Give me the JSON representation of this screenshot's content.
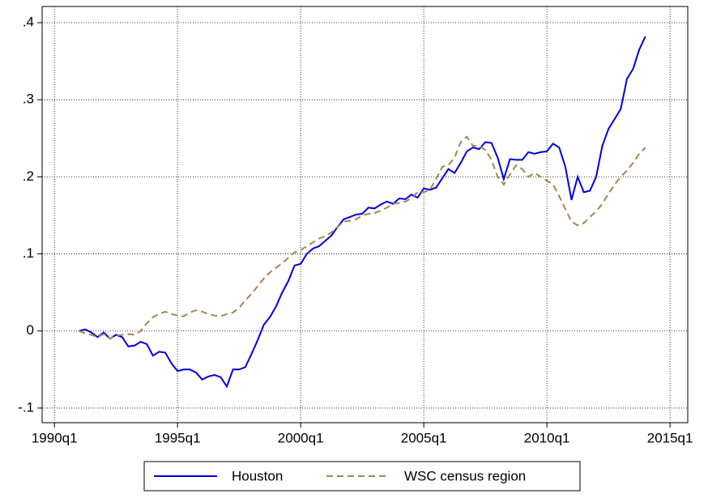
{
  "chart_data": {
    "type": "line",
    "x": [
      1991,
      1991.25,
      1991.5,
      1991.75,
      1992,
      1992.25,
      1992.5,
      1992.75,
      1993,
      1993.25,
      1993.5,
      1993.75,
      1994,
      1994.25,
      1994.5,
      1994.75,
      1995,
      1995.25,
      1995.5,
      1995.75,
      1996,
      1996.25,
      1996.5,
      1996.75,
      1997,
      1997.25,
      1997.5,
      1997.75,
      1998,
      1998.25,
      1998.5,
      1998.75,
      1999,
      1999.25,
      1999.5,
      1999.75,
      2000,
      2000.25,
      2000.5,
      2000.75,
      2001,
      2001.25,
      2001.5,
      2001.75,
      2002,
      2002.25,
      2002.5,
      2002.75,
      2003,
      2003.25,
      2003.5,
      2003.75,
      2004,
      2004.25,
      2004.5,
      2004.75,
      2005,
      2005.25,
      2005.5,
      2005.75,
      2006,
      2006.25,
      2006.5,
      2006.75,
      2007,
      2007.25,
      2007.5,
      2007.75,
      2008,
      2008.25,
      2008.5,
      2008.75,
      2009,
      2009.25,
      2009.5,
      2009.75,
      2010,
      2010.25,
      2010.5,
      2010.75,
      2011,
      2011.25,
      2011.5,
      2011.75,
      2012,
      2012.25,
      2012.5,
      2012.75,
      2013,
      2013.25,
      2013.5,
      2013.75,
      2014
    ],
    "series": [
      {
        "name": "Houston",
        "color": "#0000e0",
        "dash": "solid",
        "values": [
          0,
          0.002,
          -0.002,
          -0.008,
          -0.002,
          -0.01,
          -0.005,
          -0.008,
          -0.02,
          -0.019,
          -0.014,
          -0.017,
          -0.032,
          -0.027,
          -0.028,
          -0.042,
          -0.052,
          -0.05,
          -0.05,
          -0.054,
          -0.063,
          -0.059,
          -0.057,
          -0.06,
          -0.072,
          -0.05,
          -0.05,
          -0.047,
          -0.03,
          -0.012,
          0.008,
          0.018,
          0.032,
          0.05,
          0.065,
          0.085,
          0.087,
          0.1,
          0.107,
          0.11,
          0.117,
          0.124,
          0.135,
          0.145,
          0.148,
          0.151,
          0.152,
          0.16,
          0.159,
          0.164,
          0.168,
          0.165,
          0.172,
          0.171,
          0.177,
          0.173,
          0.185,
          0.183,
          0.186,
          0.198,
          0.21,
          0.205,
          0.218,
          0.233,
          0.238,
          0.236,
          0.245,
          0.244,
          0.225,
          0.197,
          0.223,
          0.222,
          0.222,
          0.232,
          0.23,
          0.232,
          0.233,
          0.243,
          0.238,
          0.213,
          0.17,
          0.2,
          0.18,
          0.182,
          0.2,
          0.24,
          0.262,
          0.275,
          0.288,
          0.327,
          0.34,
          0.365,
          0.382
        ]
      },
      {
        "name": "WSC census region",
        "color": "#a08850",
        "dash": "dashed",
        "values": [
          0,
          -0.003,
          -0.005,
          -0.008,
          -0.004,
          -0.01,
          -0.006,
          -0.005,
          -0.004,
          -0.005,
          0,
          0.01,
          0.018,
          0.022,
          0.025,
          0.022,
          0.02,
          0.019,
          0.024,
          0.027,
          0.025,
          0.022,
          0.02,
          0.019,
          0.022,
          0.024,
          0.03,
          0.04,
          0.048,
          0.058,
          0.068,
          0.076,
          0.082,
          0.088,
          0.095,
          0.102,
          0.105,
          0.11,
          0.115,
          0.12,
          0.123,
          0.128,
          0.135,
          0.142,
          0.143,
          0.145,
          0.15,
          0.152,
          0.153,
          0.156,
          0.16,
          0.165,
          0.166,
          0.168,
          0.172,
          0.18,
          0.18,
          0.183,
          0.197,
          0.213,
          0.215,
          0.225,
          0.245,
          0.252,
          0.24,
          0.24,
          0.235,
          0.222,
          0.2,
          0.19,
          0.203,
          0.215,
          0.21,
          0.2,
          0.205,
          0.2,
          0.195,
          0.19,
          0.175,
          0.158,
          0.142,
          0.137,
          0.14,
          0.148,
          0.155,
          0.165,
          0.178,
          0.19,
          0.2,
          0.208,
          0.218,
          0.23,
          0.238
        ]
      }
    ],
    "xlim": [
      1989.5,
      2015.72
    ],
    "ylim": [
      -0.119,
      0.421
    ],
    "xticks": [
      {
        "value": 1990,
        "label": "1990q1"
      },
      {
        "value": 1995,
        "label": "1995q1"
      },
      {
        "value": 2000,
        "label": "2000q1"
      },
      {
        "value": 2005,
        "label": "2005q1"
      },
      {
        "value": 2010,
        "label": "2010q1"
      },
      {
        "value": 2015,
        "label": "2015q1"
      }
    ],
    "yticks": [
      {
        "value": -0.1,
        "label": "-.1"
      },
      0,
      {
        "value": 0.1,
        "label": ".1"
      },
      {
        "value": 0.2,
        "label": ".2"
      },
      {
        "value": 0.3,
        "label": ".3"
      },
      {
        "value": 0.4,
        "label": ".4"
      }
    ],
    "grid": true,
    "legend": "bottom"
  }
}
